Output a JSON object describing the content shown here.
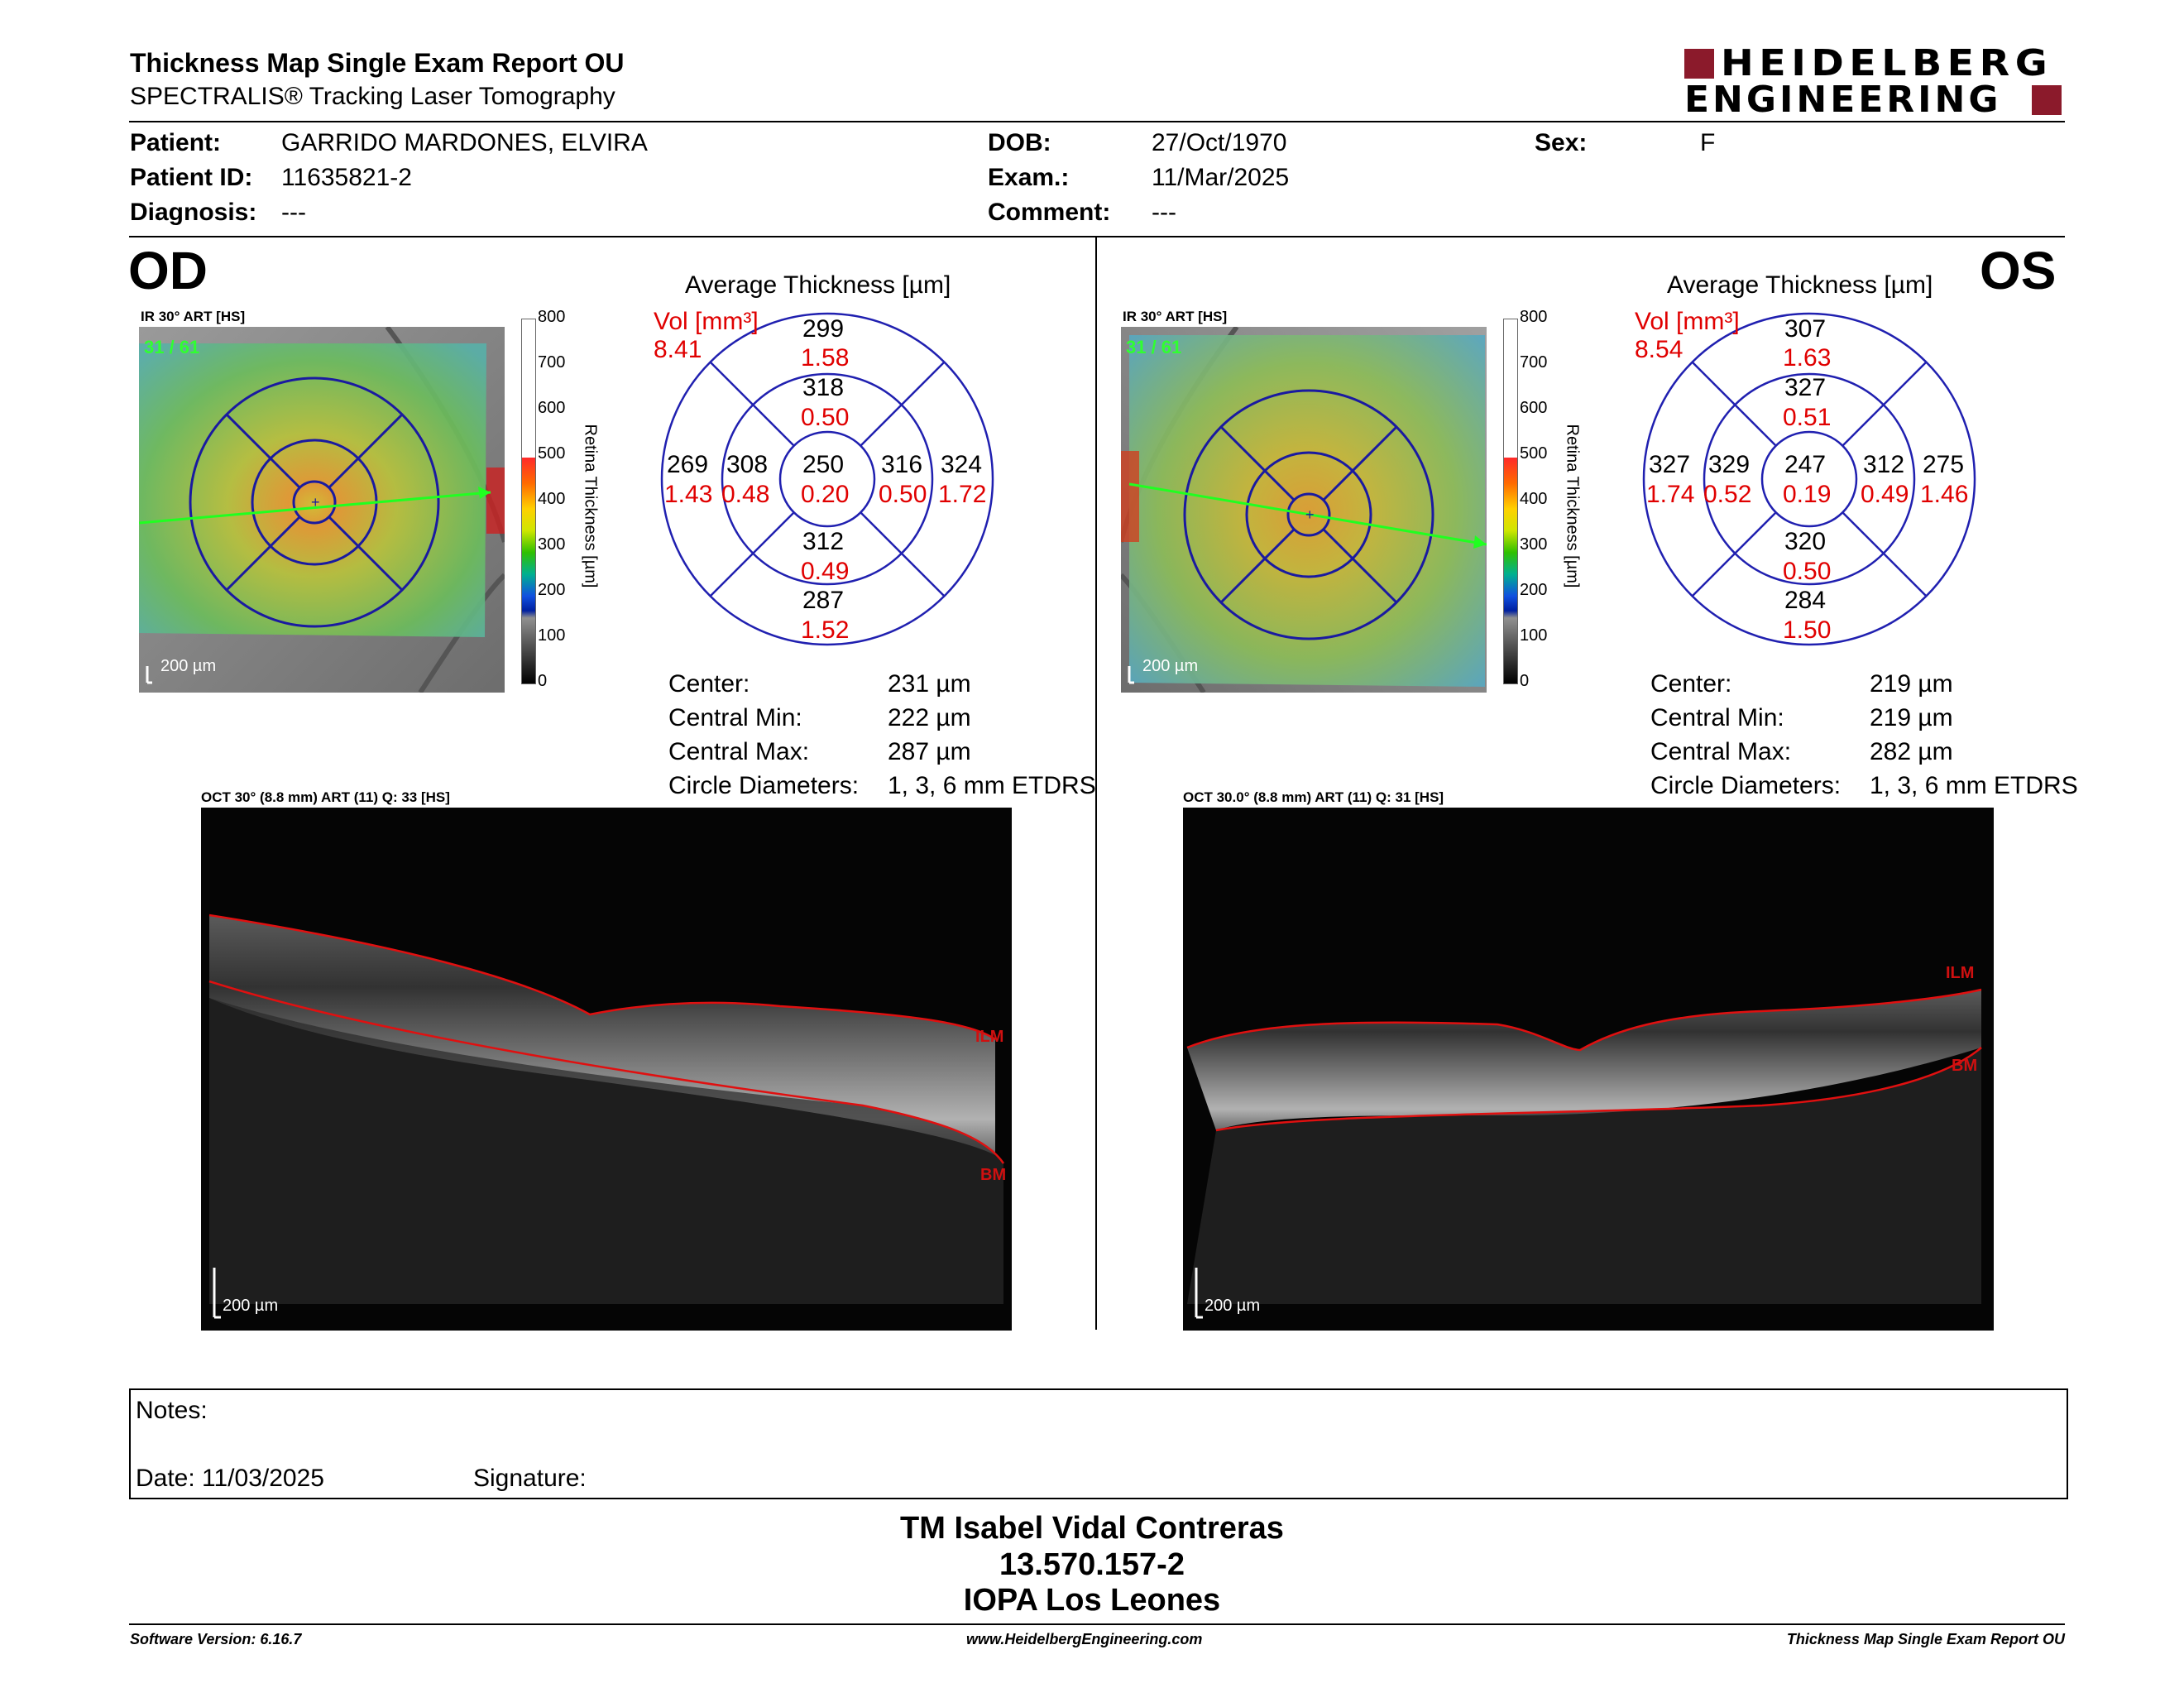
{
  "header": {
    "title": "Thickness Map Single Exam Report OU",
    "subtitle": "SPECTRALIS® Tracking Laser Tomography",
    "logo_line1": "HEIDELBERG",
    "logo_line2": "ENGINEERING",
    "brand_color": "#8b1a2b"
  },
  "patient": {
    "patient_label": "Patient:",
    "patient_value": "GARRIDO MARDONES, ELVIRA",
    "id_label": "Patient ID:",
    "id_value": "11635821-2",
    "diagnosis_label": "Diagnosis:",
    "diagnosis_value": "---",
    "dob_label": "DOB:",
    "dob_value": "27/Oct/1970",
    "exam_label": "Exam.:",
    "exam_value": "11/Mar/2025",
    "comment_label": "Comment:",
    "comment_value": "---",
    "sex_label": "Sex:",
    "sex_value": "F"
  },
  "od": {
    "eye": "OD",
    "ir_label": "IR 30° ART [HS]",
    "ir_frames": "31 / 61",
    "scale": "200 µm",
    "colorbar_title": "Retina  Thickness [µm]",
    "colorbar_ticks": [
      "800",
      "700",
      "600",
      "500",
      "400",
      "300",
      "200",
      "100",
      "0"
    ],
    "avg_title": "Average Thickness [µm]",
    "vol_label": "Vol [mm³]",
    "vol_value": "8.41",
    "sectors": {
      "center": {
        "t": "250",
        "v": "0.20"
      },
      "inner_sup": {
        "t": "318",
        "v": "0.50"
      },
      "inner_inf": {
        "t": "312",
        "v": "0.49"
      },
      "inner_left": {
        "t": "308",
        "v": "0.48"
      },
      "inner_right": {
        "t": "316",
        "v": "0.50"
      },
      "outer_sup": {
        "t": "299",
        "v": "1.58"
      },
      "outer_inf": {
        "t": "287",
        "v": "1.52"
      },
      "outer_left": {
        "t": "269",
        "v": "1.43"
      },
      "outer_right": {
        "t": "324",
        "v": "1.72"
      }
    },
    "stats": {
      "center_label": "Center:",
      "center_value": "231 µm",
      "min_label": "Central Min:",
      "min_value": "222 µm",
      "max_label": "Central Max:",
      "max_value": "287 µm",
      "diam_label": "Circle Diameters:",
      "diam_value": "1, 3, 6 mm ETDRS"
    },
    "oct_label": "OCT 30° (8.8 mm) ART (11) Q: 33 [HS]",
    "oct_scale": "200 µm",
    "ilm": "ILM",
    "bm": "BM"
  },
  "os": {
    "eye": "OS",
    "ir_label": "IR 30° ART [HS]",
    "ir_frames": "31 / 61",
    "scale": "200 µm",
    "colorbar_title": "Retina  Thickness [µm]",
    "colorbar_ticks": [
      "800",
      "700",
      "600",
      "500",
      "400",
      "300",
      "200",
      "100",
      "0"
    ],
    "avg_title": "Average Thickness [µm]",
    "vol_label": "Vol [mm³]",
    "vol_value": "8.54",
    "sectors": {
      "center": {
        "t": "247",
        "v": "0.19"
      },
      "inner_sup": {
        "t": "327",
        "v": "0.51"
      },
      "inner_inf": {
        "t": "320",
        "v": "0.50"
      },
      "inner_left": {
        "t": "329",
        "v": "0.52"
      },
      "inner_right": {
        "t": "312",
        "v": "0.49"
      },
      "outer_sup": {
        "t": "307",
        "v": "1.63"
      },
      "outer_inf": {
        "t": "284",
        "v": "1.50"
      },
      "outer_left": {
        "t": "327",
        "v": "1.74"
      },
      "outer_right": {
        "t": "275",
        "v": "1.46"
      }
    },
    "stats": {
      "center_label": "Center:",
      "center_value": "219 µm",
      "min_label": "Central Min:",
      "min_value": "219 µm",
      "max_label": "Central Max:",
      "max_value": "282 µm",
      "diam_label": "Circle Diameters:",
      "diam_value": "1, 3, 6 mm ETDRS"
    },
    "oct_label": "OCT 30.0° (8.8 mm) ART (11) Q: 31 [HS]",
    "oct_scale": "200 µm",
    "ilm": "ILM",
    "bm": "BM"
  },
  "notes": {
    "notes_label": "Notes:",
    "date_label": "Date: 11/03/2025",
    "signature_label": "Signature:"
  },
  "signature_block": {
    "line1": "TM Isabel Vidal Contreras",
    "line2": "13.570.157-2",
    "line3": "IOPA Los Leones"
  },
  "footer": {
    "left": "Software Version: 6.16.7",
    "center": "www.HeidelbergEngineering.com",
    "right": "Thickness Map Single Exam Report OU"
  }
}
